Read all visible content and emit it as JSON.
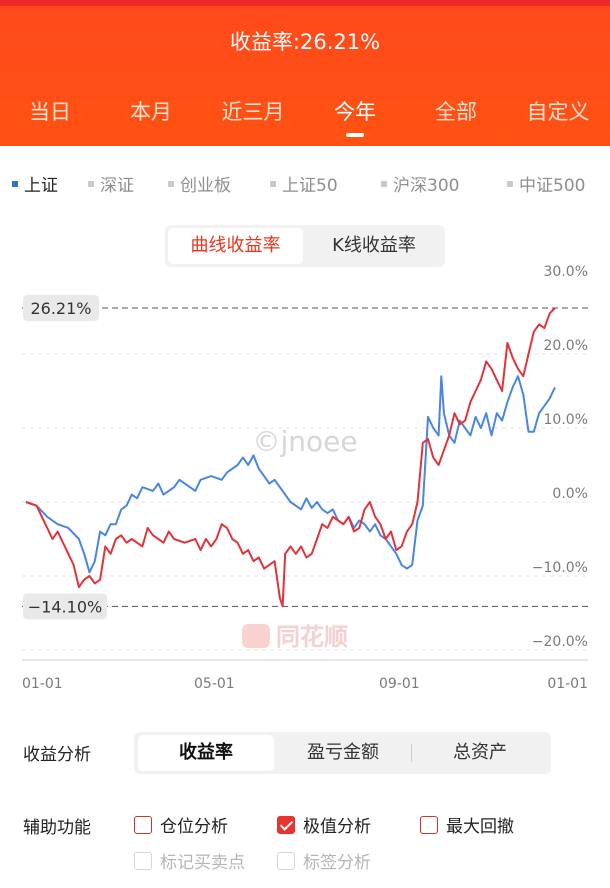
{
  "header": {
    "title": "收益率:26.21%",
    "tabs": [
      "当日",
      "本月",
      "近三月",
      "今年",
      "全部",
      "自定义"
    ],
    "active_tab": "今年"
  },
  "index_filters": [
    {
      "label": "上证",
      "active": true
    },
    {
      "label": "深证",
      "active": false
    },
    {
      "label": "创业板",
      "active": false
    },
    {
      "label": "上证50",
      "active": false
    },
    {
      "label": "沪深300",
      "active": false
    },
    {
      "label": "中证500",
      "active": false
    }
  ],
  "chart_toggle": {
    "curve": "曲线收益率",
    "kline": "K线收益率",
    "active": "曲线收益率"
  },
  "watermarks": {
    "handle": "©jnoee",
    "brand": "同花顺"
  },
  "chart_data": {
    "type": "line",
    "y_ticks": [
      "30.0%",
      "20.0%",
      "10.0%",
      "0.0%",
      "−10.0%",
      "−20.0%"
    ],
    "ylim": [
      -20,
      30
    ],
    "x_ticks": [
      "01-01",
      "05-01",
      "09-01",
      "01-01"
    ],
    "max_tag": "26.21%",
    "min_tag": "−14.10%",
    "max_value": 26.21,
    "min_value": -14.1,
    "x_range": [
      0,
      100
    ],
    "series": [
      {
        "color": "#4a86e0",
        "points": [
          [
            0,
            0
          ],
          [
            2,
            -0.5
          ],
          [
            4,
            -2
          ],
          [
            6,
            -3
          ],
          [
            8,
            -3.5
          ],
          [
            10,
            -5
          ],
          [
            11,
            -7
          ],
          [
            12,
            -9.5
          ],
          [
            13,
            -8
          ],
          [
            14,
            -4
          ],
          [
            15,
            -4.5
          ],
          [
            16,
            -3
          ],
          [
            17,
            -3
          ],
          [
            18,
            -1
          ],
          [
            19,
            -0.5
          ],
          [
            20,
            1
          ],
          [
            21,
            0.5
          ],
          [
            22,
            2
          ],
          [
            24,
            1.5
          ],
          [
            25,
            2.5
          ],
          [
            26,
            1
          ],
          [
            28,
            2
          ],
          [
            29,
            3
          ],
          [
            31,
            2
          ],
          [
            32,
            1.5
          ],
          [
            33,
            3
          ],
          [
            35,
            3.5
          ],
          [
            37,
            3
          ],
          [
            38,
            4
          ],
          [
            40,
            5
          ],
          [
            41,
            6
          ],
          [
            42,
            5
          ],
          [
            43,
            6.3
          ],
          [
            44,
            4.5
          ],
          [
            45,
            3.5
          ],
          [
            46,
            2.5
          ],
          [
            47,
            3
          ],
          [
            48,
            2
          ],
          [
            49,
            1
          ],
          [
            50,
            0
          ],
          [
            51,
            -0.5
          ],
          [
            52,
            -1
          ],
          [
            53,
            0.5
          ],
          [
            54,
            -0.8
          ],
          [
            55,
            0
          ],
          [
            56,
            -1
          ],
          [
            57,
            -1.5
          ],
          [
            58,
            -1
          ],
          [
            59,
            -2.5
          ],
          [
            60,
            -3
          ],
          [
            61,
            -2
          ],
          [
            62,
            -3.5
          ],
          [
            63,
            -2.5
          ],
          [
            64,
            -3
          ],
          [
            65,
            -4
          ],
          [
            66,
            -3
          ],
          [
            67,
            -4.5
          ],
          [
            68,
            -5
          ],
          [
            69,
            -6
          ],
          [
            70,
            -7
          ],
          [
            71,
            -8.5
          ],
          [
            72,
            -9
          ],
          [
            73,
            -8.5
          ],
          [
            74,
            -2.5
          ],
          [
            75,
            -0.5
          ],
          [
            76,
            11.5
          ],
          [
            77,
            10
          ],
          [
            78,
            9
          ],
          [
            78.5,
            17
          ],
          [
            79,
            12
          ],
          [
            80,
            9
          ],
          [
            81,
            8
          ],
          [
            82,
            11
          ],
          [
            83,
            10
          ],
          [
            84,
            9
          ],
          [
            85,
            11.5
          ],
          [
            86,
            10
          ],
          [
            87,
            12
          ],
          [
            88,
            9
          ],
          [
            89,
            12
          ],
          [
            90,
            11
          ],
          [
            91,
            13.5
          ],
          [
            92,
            15.5
          ],
          [
            93,
            17
          ],
          [
            94,
            14.5
          ],
          [
            95,
            9.5
          ],
          [
            96,
            9.5
          ],
          [
            97,
            12
          ],
          [
            98,
            13
          ],
          [
            99,
            14
          ],
          [
            100,
            15.5
          ]
        ]
      },
      {
        "color": "#e0343a",
        "points": [
          [
            0,
            0
          ],
          [
            2,
            -0.5
          ],
          [
            3,
            -2
          ],
          [
            4,
            -3.5
          ],
          [
            5,
            -5
          ],
          [
            6,
            -4
          ],
          [
            7,
            -5.5
          ],
          [
            8,
            -7
          ],
          [
            9,
            -8.5
          ],
          [
            10,
            -11.5
          ],
          [
            11,
            -10.5
          ],
          [
            12,
            -10
          ],
          [
            13,
            -11
          ],
          [
            14,
            -10.5
          ],
          [
            15,
            -6
          ],
          [
            16,
            -7
          ],
          [
            17,
            -5
          ],
          [
            18,
            -4.5
          ],
          [
            19,
            -5.5
          ],
          [
            20,
            -5
          ],
          [
            22,
            -6
          ],
          [
            23,
            -3.5
          ],
          [
            24,
            -4.5
          ],
          [
            25,
            -5
          ],
          [
            26,
            -5.5
          ],
          [
            27,
            -4
          ],
          [
            28,
            -5
          ],
          [
            30,
            -5.5
          ],
          [
            32,
            -5
          ],
          [
            33,
            -6.5
          ],
          [
            34,
            -5
          ],
          [
            35,
            -6
          ],
          [
            36,
            -5
          ],
          [
            37,
            -3
          ],
          [
            38,
            -3.5
          ],
          [
            39,
            -5
          ],
          [
            40,
            -5.5
          ],
          [
            41,
            -7
          ],
          [
            42,
            -6.5
          ],
          [
            43,
            -8
          ],
          [
            44,
            -7.5
          ],
          [
            45,
            -9
          ],
          [
            46,
            -8.5
          ],
          [
            47,
            -8
          ],
          [
            48,
            -13
          ],
          [
            48.5,
            -14.1
          ],
          [
            49,
            -7
          ],
          [
            50,
            -6
          ],
          [
            51,
            -7
          ],
          [
            52,
            -6
          ],
          [
            53,
            -7.5
          ],
          [
            54,
            -7
          ],
          [
            55,
            -5
          ],
          [
            56,
            -3
          ],
          [
            57,
            -3.5
          ],
          [
            58,
            -2
          ],
          [
            59,
            -2.5
          ],
          [
            60,
            -3
          ],
          [
            61,
            -2
          ],
          [
            62,
            -4
          ],
          [
            63,
            -3.5
          ],
          [
            64,
            -1
          ],
          [
            65,
            0
          ],
          [
            66,
            -2
          ],
          [
            67,
            -3
          ],
          [
            68,
            -5
          ],
          [
            69,
            -4
          ],
          [
            70,
            -6.5
          ],
          [
            71,
            -6
          ],
          [
            72,
            -4
          ],
          [
            73,
            -3
          ],
          [
            74,
            0
          ],
          [
            75,
            8
          ],
          [
            76,
            8.5
          ],
          [
            77,
            6
          ],
          [
            78,
            5
          ],
          [
            79,
            7
          ],
          [
            80,
            9
          ],
          [
            81,
            12
          ],
          [
            82,
            10.5
          ],
          [
            83,
            11
          ],
          [
            84,
            13.5
          ],
          [
            85,
            15
          ],
          [
            86,
            16.5
          ],
          [
            87,
            19
          ],
          [
            88,
            18
          ],
          [
            89,
            16.5
          ],
          [
            90,
            15
          ],
          [
            91,
            21.5
          ],
          [
            92,
            19.5
          ],
          [
            93,
            18
          ],
          [
            94,
            17
          ],
          [
            95,
            20
          ],
          [
            96,
            23
          ],
          [
            97,
            24
          ],
          [
            98,
            23.5
          ],
          [
            99,
            25.5
          ],
          [
            100,
            26.21
          ]
        ]
      }
    ]
  },
  "analysis": {
    "label": "收益分析",
    "options": [
      "收益率",
      "盈亏金额",
      "总资产"
    ],
    "active": "收益率"
  },
  "aux": {
    "label": "辅助功能",
    "items": [
      {
        "label": "仓位分析",
        "checked": false,
        "disabled": false
      },
      {
        "label": "极值分析",
        "checked": true,
        "disabled": false
      },
      {
        "label": "最大回撤",
        "checked": false,
        "disabled": false
      },
      {
        "label": "标记买卖点",
        "checked": false,
        "disabled": true
      },
      {
        "label": "标签分析",
        "checked": false,
        "disabled": true
      }
    ]
  }
}
